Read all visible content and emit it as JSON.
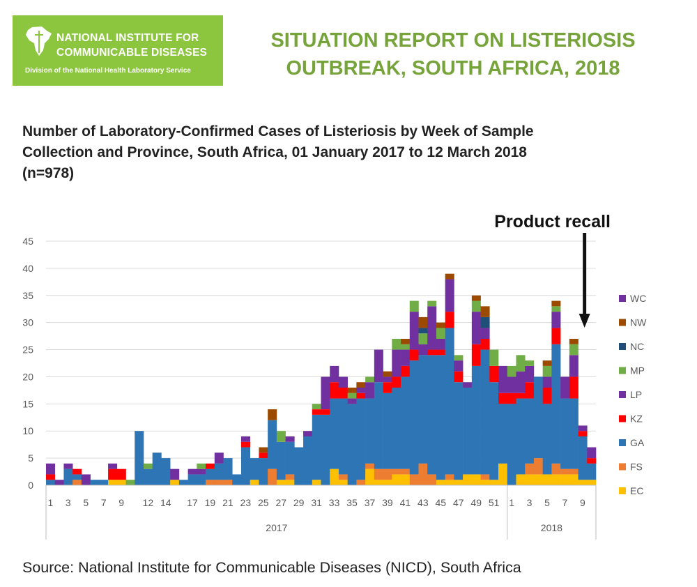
{
  "header": {
    "logo": {
      "line1": "NATIONAL INSTITUTE FOR",
      "line2": "COMMUNICABLE DISEASES",
      "line3": "Division of the National Health Laboratory Service",
      "bg_color": "#8cc63f"
    },
    "report_title_line1": "SITUATION REPORT ON LISTERIOSIS",
    "report_title_line2": "OUTBREAK, SOUTH AFRICA, 2018",
    "title_color": "#77a33b"
  },
  "chart_title": {
    "line1": "Number of Laboratory-Confirmed Cases of Listeriosis by Week of Sample",
    "line2": "Collection and Province, South Africa, 01 January 2017 to 12 March 2018",
    "line3": "(n=978)"
  },
  "source": "Source: National Institute for Communicable Diseases (NICD), South Africa",
  "chart_data": {
    "type": "bar",
    "stacked": true,
    "ylim": [
      0,
      45
    ],
    "yticks": [
      0,
      5,
      10,
      15,
      20,
      25,
      30,
      35,
      40,
      45
    ],
    "grid": true,
    "legend_position": "right",
    "annotation": "Product recall",
    "annotation_week": "2018-10",
    "year_groups": [
      {
        "label": "2017",
        "weeks": 52
      },
      {
        "label": "2018",
        "weeks": 10
      }
    ],
    "categories": [
      "1",
      "2",
      "3",
      "4",
      "5",
      "6",
      "7",
      "8",
      "9",
      "10",
      "11",
      "12",
      "13",
      "14",
      "15",
      "16",
      "17",
      "18",
      "19",
      "20",
      "21",
      "22",
      "23",
      "24",
      "25",
      "26",
      "27",
      "28",
      "29",
      "30",
      "31",
      "32",
      "33",
      "34",
      "35",
      "36",
      "37",
      "38",
      "39",
      "40",
      "41",
      "42",
      "43",
      "44",
      "45",
      "46",
      "47",
      "48",
      "49",
      "50",
      "51",
      "52",
      "1",
      "2",
      "3",
      "4",
      "5",
      "6",
      "7",
      "8",
      "9",
      "10"
    ],
    "tick_labels_2017": [
      "1",
      "3",
      "5",
      "7",
      "9",
      "12",
      "14",
      "17",
      "19",
      "21",
      "23",
      "25",
      "27",
      "29",
      "31",
      "33",
      "35",
      "37",
      "39",
      "41",
      "43",
      "45",
      "47",
      "49",
      "51"
    ],
    "tick_labels_2018": [
      "1",
      "3",
      "5",
      "7",
      "9"
    ],
    "series": [
      {
        "name": "EC",
        "color": "#ffc000",
        "values": [
          0,
          0,
          0,
          0,
          0,
          0,
          0,
          1,
          1,
          0,
          0,
          0,
          0,
          0,
          1,
          0,
          0,
          0,
          0,
          0,
          0,
          0,
          0,
          1,
          0,
          0,
          1,
          1,
          0,
          0,
          1,
          0,
          3,
          1,
          0,
          0,
          3,
          1,
          1,
          2,
          2,
          0,
          0,
          0,
          1,
          1,
          1,
          2,
          2,
          1,
          1,
          4,
          0,
          2,
          2,
          2,
          2,
          2,
          2,
          2,
          1,
          1
        ]
      },
      {
        "name": "FS",
        "color": "#ed7d31",
        "values": [
          0,
          0,
          0,
          1,
          0,
          0,
          0,
          0,
          0,
          0,
          0,
          0,
          0,
          0,
          0,
          0,
          0,
          0,
          1,
          1,
          1,
          0,
          0,
          0,
          0,
          3,
          0,
          1,
          0,
          0,
          0,
          0,
          0,
          1,
          0,
          1,
          1,
          2,
          2,
          1,
          1,
          2,
          4,
          2,
          0,
          1,
          0,
          0,
          0,
          1,
          0,
          0,
          0,
          0,
          2,
          3,
          0,
          2,
          1,
          1,
          0,
          0
        ]
      },
      {
        "name": "GA",
        "color": "#2e75b6",
        "values": [
          1,
          0,
          3,
          1,
          0,
          1,
          1,
          0,
          0,
          0,
          10,
          3,
          6,
          5,
          0,
          1,
          2,
          2,
          2,
          3,
          4,
          2,
          7,
          4,
          5,
          9,
          7,
          6,
          7,
          9,
          12,
          13,
          13,
          14,
          15,
          15,
          12,
          16,
          14,
          15,
          17,
          21,
          20,
          22,
          23,
          27,
          18,
          16,
          20,
          23,
          18,
          11,
          15,
          14,
          12,
          15,
          13,
          22,
          13,
          13,
          8,
          3
        ]
      },
      {
        "name": "KZ",
        "color": "#ff0000",
        "values": [
          1,
          0,
          0,
          1,
          0,
          0,
          0,
          2,
          2,
          0,
          0,
          0,
          0,
          0,
          0,
          0,
          0,
          0,
          1,
          0,
          0,
          0,
          1,
          0,
          1,
          0,
          0,
          0,
          0,
          0,
          1,
          1,
          3,
          2,
          0,
          1,
          0,
          0,
          2,
          2,
          2,
          2,
          0,
          1,
          1,
          3,
          2,
          0,
          4,
          2,
          3,
          2,
          2,
          1,
          3,
          0,
          3,
          3,
          0,
          4,
          1,
          1
        ]
      },
      {
        "name": "LP",
        "color": "#7030a0",
        "values": [
          2,
          1,
          1,
          0,
          2,
          0,
          0,
          1,
          0,
          0,
          0,
          0,
          0,
          0,
          2,
          0,
          1,
          1,
          0,
          2,
          0,
          0,
          1,
          0,
          0,
          0,
          0,
          1,
          0,
          1,
          0,
          6,
          3,
          2,
          1,
          1,
          3,
          6,
          1,
          5,
          3,
          7,
          2,
          8,
          2,
          6,
          2,
          1,
          6,
          2,
          0,
          5,
          3,
          4,
          3,
          0,
          2,
          3,
          4,
          4,
          1,
          2
        ]
      },
      {
        "name": "MP",
        "color": "#70ad47",
        "values": [
          0,
          0,
          0,
          0,
          0,
          0,
          0,
          0,
          0,
          1,
          0,
          1,
          0,
          0,
          0,
          0,
          0,
          1,
          0,
          0,
          0,
          0,
          0,
          0,
          0,
          0,
          2,
          0,
          0,
          0,
          1,
          0,
          0,
          0,
          1,
          0,
          1,
          0,
          0,
          2,
          1,
          2,
          2,
          1,
          2,
          0,
          1,
          0,
          2,
          0,
          3,
          0,
          2,
          3,
          1,
          0,
          2,
          1,
          0,
          2,
          0,
          0
        ]
      },
      {
        "name": "NC",
        "color": "#1f4e79",
        "values": [
          0,
          0,
          0,
          0,
          0,
          0,
          0,
          0,
          0,
          0,
          0,
          0,
          0,
          0,
          0,
          0,
          0,
          0,
          0,
          0,
          0,
          0,
          0,
          0,
          0,
          0,
          0,
          0,
          0,
          0,
          0,
          0,
          0,
          0,
          0,
          0,
          0,
          0,
          0,
          0,
          0,
          0,
          1,
          0,
          0,
          0,
          0,
          0,
          0,
          2,
          0,
          0,
          0,
          0,
          0,
          0,
          0,
          0,
          0,
          0,
          0,
          0
        ]
      },
      {
        "name": "NW",
        "color": "#9c4a00",
        "values": [
          0,
          0,
          0,
          0,
          0,
          0,
          0,
          0,
          0,
          0,
          0,
          0,
          0,
          0,
          0,
          0,
          0,
          0,
          0,
          0,
          0,
          0,
          0,
          0,
          1,
          2,
          0,
          0,
          0,
          0,
          0,
          0,
          0,
          0,
          1,
          1,
          0,
          0,
          1,
          0,
          1,
          0,
          2,
          0,
          1,
          1,
          0,
          0,
          1,
          2,
          0,
          0,
          0,
          0,
          0,
          0,
          1,
          1,
          0,
          1,
          0,
          0
        ]
      },
      {
        "name": "WC",
        "color": "#7030a0",
        "values": [
          0,
          0,
          0,
          0,
          0,
          0,
          0,
          0,
          0,
          0,
          0,
          0,
          0,
          0,
          0,
          0,
          0,
          0,
          0,
          0,
          0,
          0,
          0,
          0,
          0,
          0,
          0,
          0,
          0,
          0,
          0,
          0,
          0,
          0,
          0,
          0,
          0,
          0,
          0,
          0,
          0,
          0,
          0,
          0,
          0,
          0,
          0,
          0,
          0,
          0,
          0,
          0,
          0,
          0,
          0,
          0,
          0,
          0,
          0,
          0,
          0,
          0
        ]
      }
    ]
  }
}
